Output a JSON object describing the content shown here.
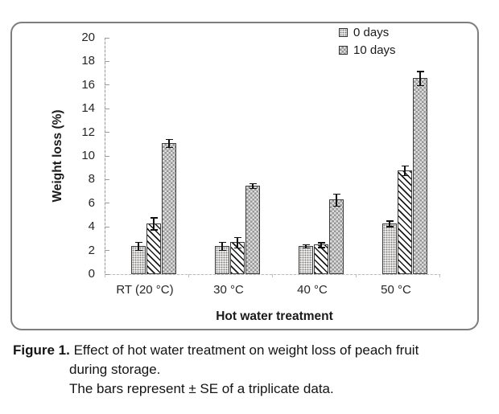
{
  "chart_data": {
    "type": "bar",
    "title": "",
    "xlabel": "Hot water treatment",
    "ylabel": "Weight loss (%)",
    "ylim": [
      0,
      20
    ],
    "ytick_step": 2,
    "grid": false,
    "categories": [
      "RT (20 °C)",
      "30 °C",
      "40 °C",
      "50 °C"
    ],
    "series": [
      {
        "name": "0 days",
        "pattern": "dots",
        "values": [
          2.4,
          2.4,
          2.4,
          4.3
        ],
        "errors": [
          0.35,
          0.35,
          0.15,
          0.25
        ]
      },
      {
        "name": "",
        "pattern": "diag",
        "values": [
          4.3,
          2.7,
          2.5,
          8.8
        ],
        "errors": [
          0.5,
          0.45,
          0.2,
          0.4
        ]
      },
      {
        "name": "10 days",
        "pattern": "checker",
        "values": [
          11.1,
          7.5,
          6.3,
          16.6
        ],
        "errors": [
          0.35,
          0.2,
          0.5,
          0.6
        ]
      }
    ],
    "legend": [
      {
        "label": "0 days",
        "pattern": "dots"
      },
      {
        "label": "10 days",
        "pattern": "checker"
      }
    ],
    "legend_position": "top-right"
  },
  "caption": {
    "figure_label": "Figure 1.",
    "line1": "Effect of hot water treatment on weight loss of peach fruit",
    "line2": "during storage.",
    "line3": "The bars represent ± SE of a triplicate data."
  },
  "colors": {
    "frame_border": "#7d7d7d",
    "axis": "#9b9b9b",
    "bar_outline": "#3c3c3c",
    "error_bar": "#111111",
    "text": "#1f1f1f",
    "dots_bg": "#edebe9",
    "dots_fg": "#7a7a7a",
    "diag_line": "#1a1a1a",
    "checker_dark": "#969696",
    "checker_light": "#dedede"
  }
}
